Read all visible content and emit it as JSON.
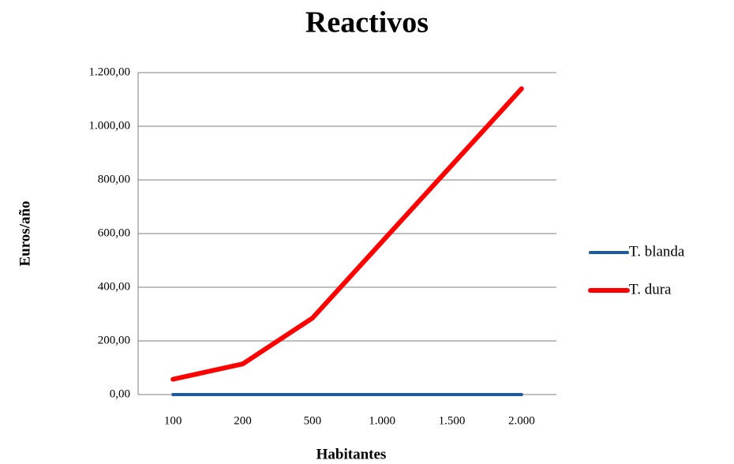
{
  "chart_data": {
    "type": "line",
    "title": "Reactivos",
    "x_label": "Habitantes",
    "y_label": "Euros/año",
    "categories": [
      "100",
      "200",
      "500",
      "1.000",
      "1.500",
      "2.000"
    ],
    "series": [
      {
        "name": "T. blanda",
        "color": "#1f5b99",
        "values": [
          0,
          0,
          0,
          0,
          0,
          0
        ]
      },
      {
        "name": "T. dura",
        "color": "#ff0000",
        "values": [
          57,
          114,
          285,
          570,
          855,
          1140
        ]
      }
    ],
    "ylim": [
      0,
      1200
    ],
    "yticks": [
      {
        "value": 0,
        "label": "0,00"
      },
      {
        "value": 200,
        "label": "200,00"
      },
      {
        "value": 400,
        "label": "400,00"
      },
      {
        "value": 600,
        "label": "600,00"
      },
      {
        "value": 800,
        "label": "800,00"
      },
      {
        "value": 1000,
        "label": "1.000,00"
      },
      {
        "value": 1200,
        "label": "1.200,00"
      }
    ],
    "grid": true,
    "legend": "right"
  }
}
